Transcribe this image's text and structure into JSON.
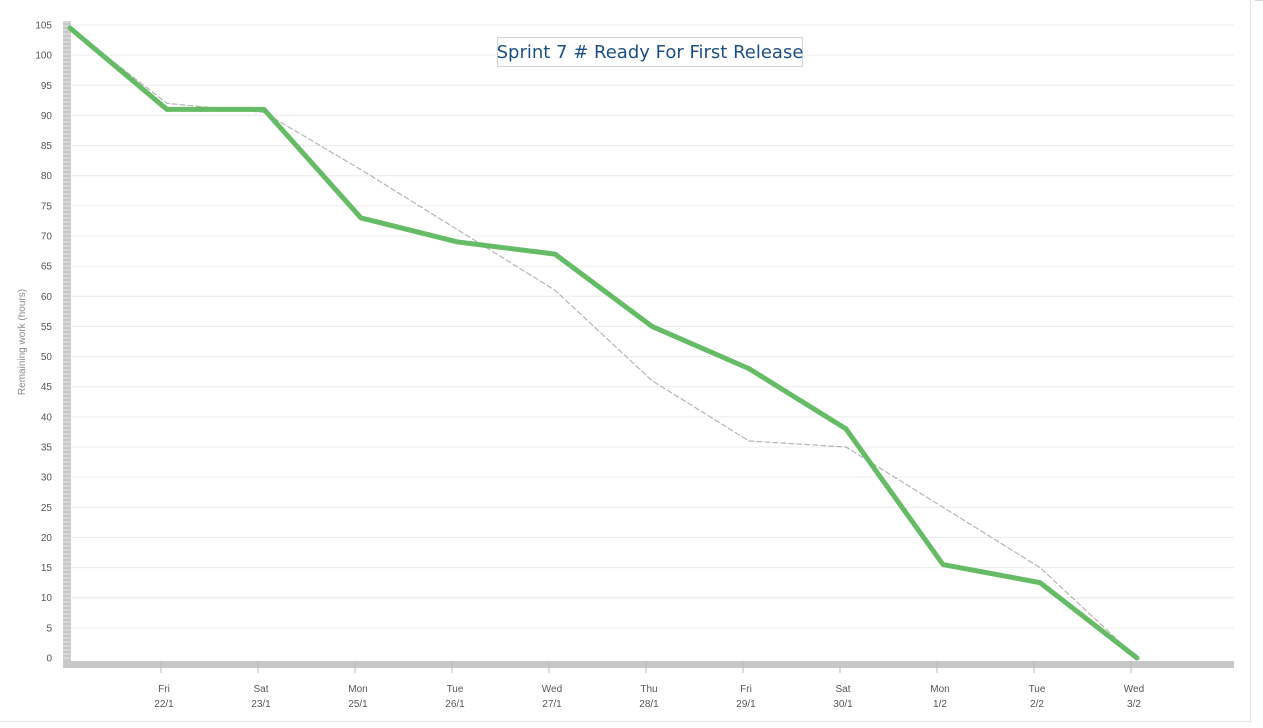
{
  "chart_data": {
    "type": "line",
    "title": "Sprint 7 # Ready For First Release",
    "ylabel": "Remaining work (hours)",
    "xlabel": "",
    "ylim": [
      0,
      105
    ],
    "yticks": [
      0,
      5,
      10,
      15,
      20,
      25,
      30,
      35,
      40,
      45,
      50,
      55,
      60,
      65,
      70,
      75,
      80,
      85,
      90,
      95,
      100,
      105
    ],
    "x_days": [
      "",
      "Fri",
      "Sat",
      "Mon",
      "Tue",
      "Wed",
      "Thu",
      "Fri",
      "Sat",
      "Mon",
      "Tue",
      "Wed"
    ],
    "x_dates": [
      "",
      "22/1",
      "23/1",
      "25/1",
      "26/1",
      "27/1",
      "28/1",
      "29/1",
      "30/1",
      "1/2",
      "2/2",
      "3/2"
    ],
    "grid": true,
    "legend": "none",
    "series": [
      {
        "values": [
          104.5,
          91,
          91,
          73,
          69,
          67,
          55,
          48,
          38,
          15.5,
          12.5,
          0
        ],
        "color": "#66bb66",
        "style": "solid"
      },
      {
        "values": [
          104.5,
          92,
          90.5,
          81,
          71,
          61,
          46,
          36,
          35,
          25,
          15,
          0
        ],
        "color": "#b5b5b5",
        "style": "dashed"
      }
    ]
  }
}
